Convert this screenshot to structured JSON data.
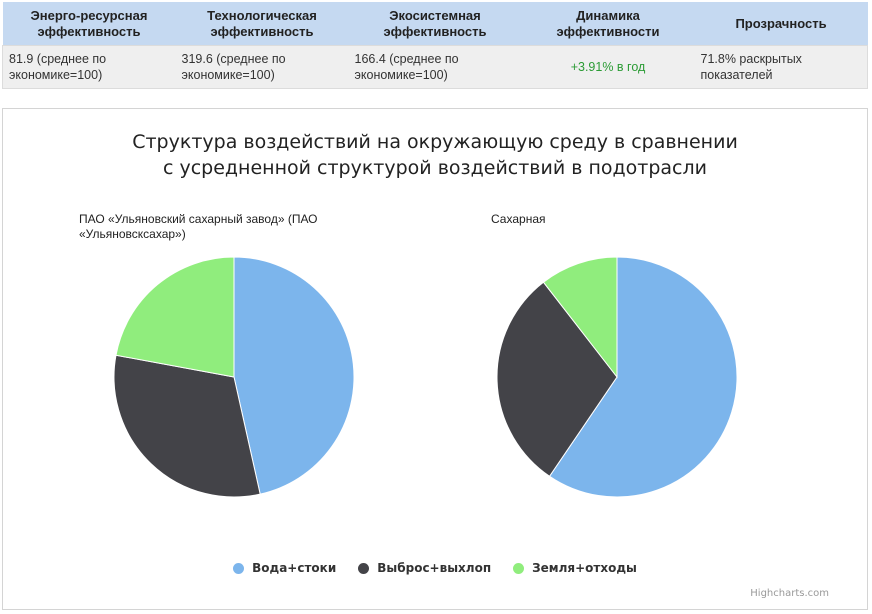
{
  "metrics": {
    "headers": [
      "Энерго-ресурсная эффективность",
      "Технологическая эффективность",
      "Экосистемная эффективность",
      "Динамика эффективности",
      "Прозрачность"
    ],
    "values": [
      "81.9 (среднее по экономике=100)",
      "319.6 (среднее по экономике=100)",
      "166.4 (среднее по экономике=100)",
      "+3.91% в год",
      "71.8% раскрытых показателей"
    ]
  },
  "chart_data": {
    "type": "pie",
    "title": "Структура воздействий на окружающую среду в сравнении с усредненной структурой воздействий в подотрасли",
    "categories": [
      "Вода+стоки",
      "Выброс+выхлоп",
      "Земля+отходы"
    ],
    "colors": [
      "#7cb5ec",
      "#434348",
      "#90ed7d"
    ],
    "series": [
      {
        "name": "ПАО «Ульяновский сахарный завод» (ПАО «Ульяновсксахар»)",
        "values": [
          46.5,
          31.4,
          22.1
        ]
      },
      {
        "name": "Сахарная",
        "values": [
          59.5,
          30.0,
          10.5
        ]
      }
    ],
    "legend_position": "bottom-center",
    "credits": "Highcharts.com"
  }
}
